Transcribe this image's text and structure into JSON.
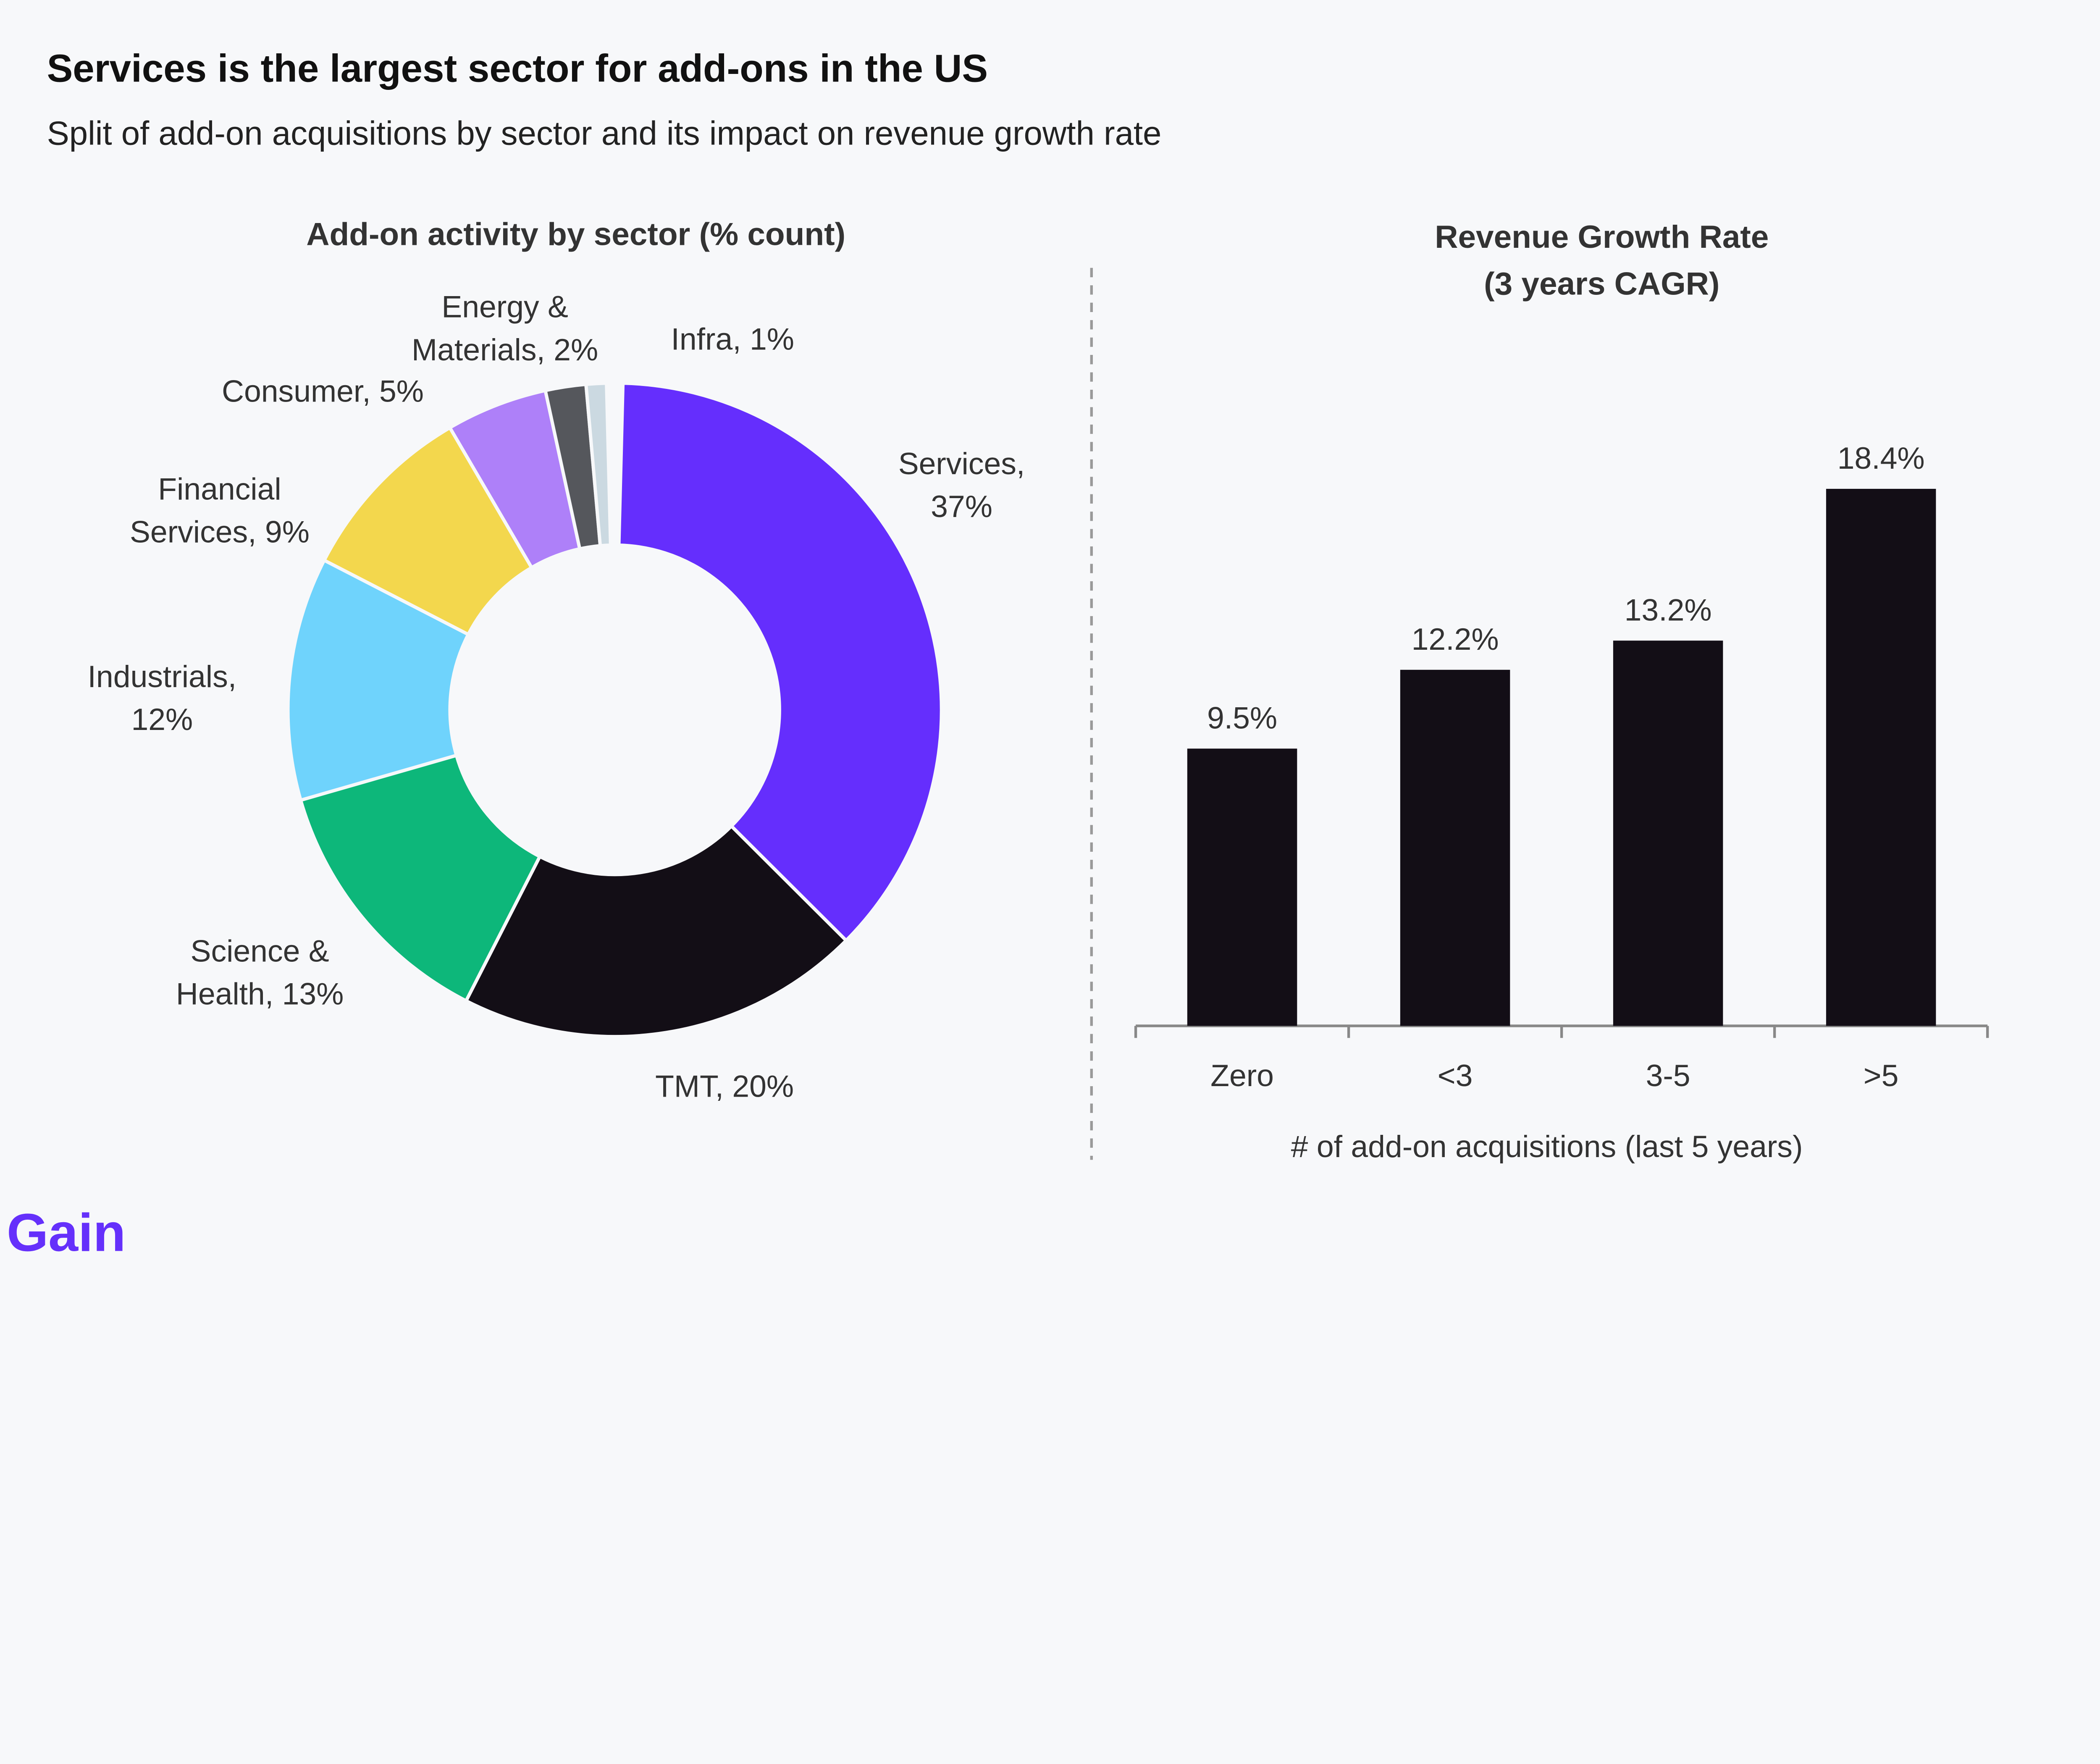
{
  "header": {
    "title": "Services is the largest sector for add-ons in the US",
    "subtitle": "Split of add-on acquisitions by sector and its impact on revenue growth rate"
  },
  "logo": "Gain",
  "chart_data": [
    {
      "type": "pie",
      "donut": true,
      "title": "Add-on activity by sector (% count)",
      "categories": [
        "Services",
        "TMT",
        "Science & Health",
        "Industrials",
        "Financial Services",
        "Consumer",
        "Energy & Materials",
        "Infra"
      ],
      "values": [
        37,
        20,
        13,
        12,
        9,
        5,
        2,
        1
      ],
      "colors": [
        "#652efd",
        "#130e16",
        "#0db77a",
        "#6fd3fc",
        "#f3d74d",
        "#ae80f9",
        "#55575c",
        "#cbd9e1"
      ],
      "labels": [
        [
          "Services,",
          "37%"
        ],
        [
          "TMT, 20%"
        ],
        [
          "Science &",
          "Health, 13%"
        ],
        [
          "Industrials,",
          "12%"
        ],
        [
          "Financial",
          "Services, 9%"
        ],
        [
          "Consumer, 5%"
        ],
        [
          "Energy &",
          "Materials, 2%"
        ],
        [
          "Infra, 1%"
        ]
      ]
    },
    {
      "type": "bar",
      "title": [
        "Revenue Growth Rate",
        "(3 years CAGR)"
      ],
      "categories": [
        "Zero",
        "<3",
        "3-5",
        ">5"
      ],
      "values": [
        9.5,
        12.2,
        13.2,
        18.4
      ],
      "data_labels": [
        "9.5%",
        "12.2%",
        "13.2%",
        "18.4%"
      ],
      "xlabel": "# of add-on acquisitions (last 5 years)",
      "ylabel": "",
      "ylim": [
        0,
        18.4
      ],
      "bar_color": "#130e16",
      "grid": false
    }
  ]
}
